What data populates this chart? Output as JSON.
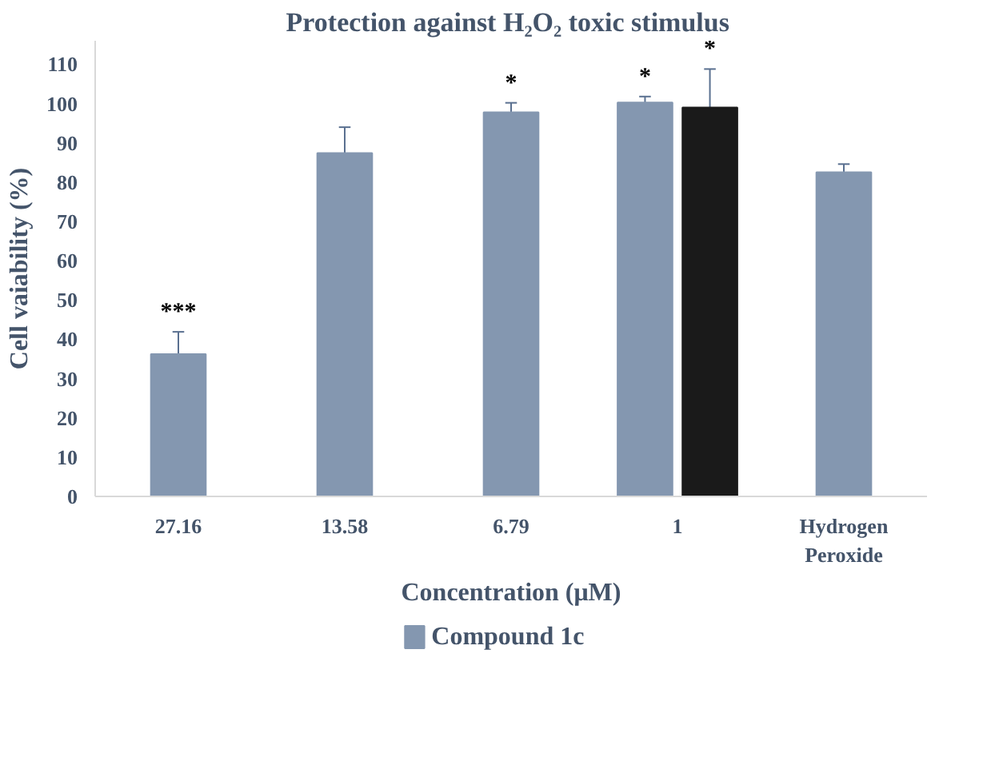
{
  "chart_data": {
    "type": "bar",
    "title": "Protection against H₂O₂  toxic stimulus",
    "xlabel": "Concentration (μM)",
    "ylabel": "Cell vaiability (%)",
    "categories": [
      "27.16",
      "13.58",
      "6.79",
      "1",
      "Hydrogen\nPeroxide"
    ],
    "series": [
      {
        "name": "Compound 1c",
        "color": "#8497b0",
        "values": [
          36.2,
          87.4,
          97.8,
          100.3,
          82.5
        ],
        "errors": [
          5.7,
          6.6,
          2.4,
          1.5,
          2.1
        ]
      },
      {
        "color": "#1a1a1a",
        "values": [
          null,
          null,
          null,
          99,
          null
        ],
        "errors": [
          null,
          null,
          null,
          9.8,
          null
        ]
      }
    ],
    "ylim": [
      0,
      116
    ],
    "yticks": [
      0,
      10,
      20,
      30,
      40,
      50,
      60,
      70,
      80,
      90,
      100,
      110
    ],
    "grid": false,
    "legend": "bottom",
    "annotations": [
      {
        "text": "***",
        "x": "27.16",
        "y": 36.2
      },
      {
        "text": "*",
        "x": "6.79",
        "y": 97.8
      },
      {
        "text": "*",
        "x": "1",
        "y": 100.3
      },
      {
        "text": "*",
        "x": "1",
        "y": 99
      }
    ]
  }
}
